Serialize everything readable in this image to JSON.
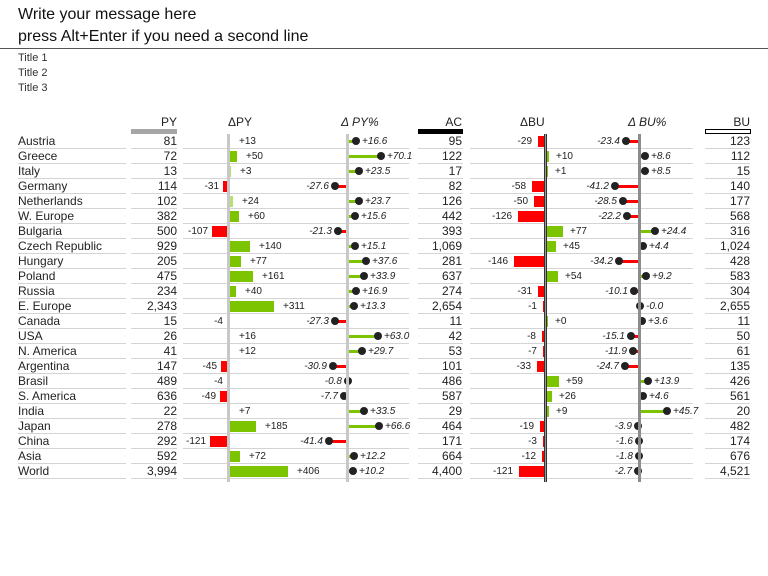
{
  "message": {
    "line1": "Write your message here",
    "line2": "press Alt+Enter if you need a second line"
  },
  "titles": [
    "Title 1",
    "Title 2",
    "Title 3"
  ],
  "colors": {
    "positive": "#7dc400",
    "negative": "#ff0000",
    "py_marker": "#a6a6a6",
    "ac_marker": "#000000",
    "axis_gray": "#bfbfbf",
    "axis_dark": "#555555",
    "dot": "#222222"
  },
  "headers": {
    "py": "PY",
    "delta_py": "ΔPY",
    "delta_py_pct": "Δ PY%",
    "ac": "AC",
    "delta_bu": "ΔBU",
    "delta_bu_pct": "Δ BU%",
    "bu": "BU"
  },
  "chart_data": {
    "type": "table",
    "title": "Write your message here",
    "subtitle": "press Alt+Enter if you need a second line",
    "columns": [
      "Name",
      "PY",
      "ΔPY",
      "ΔPY%",
      "AC",
      "ΔBU",
      "ΔBU%",
      "BU"
    ],
    "rows": [
      {
        "name": "Austria",
        "py": "81",
        "dpy": "+13",
        "dpy_v": 13,
        "dpyp": "+16.6",
        "dpyp_v": 16.6,
        "ac": "95",
        "dbu": "-29",
        "dbu_v": -29,
        "dbup": "-23.4",
        "dbup_v": -23.4,
        "bu": "123",
        "dpy_bar": false,
        "dbu_bar": true
      },
      {
        "name": "Greece",
        "py": "72",
        "dpy": "+50",
        "dpy_v": 50,
        "dpyp": "+70.1",
        "dpyp_v": 70.1,
        "ac": "122",
        "dbu": "+10",
        "dbu_v": 10,
        "dbup": "+8.6",
        "dbup_v": 8.6,
        "bu": "112",
        "dpy_bar": true,
        "dbu_bar": true
      },
      {
        "name": "Italy",
        "py": "13",
        "dpy": "+3",
        "dpy_v": 3,
        "dpyp": "+23.5",
        "dpyp_v": 23.5,
        "ac": "17",
        "dbu": "+1",
        "dbu_v": 1,
        "dbup": "+8.5",
        "dbup_v": 8.5,
        "bu": "15",
        "dpy_bar": true,
        "dbu_bar": true
      },
      {
        "name": "Germany",
        "py": "114",
        "dpy": "-31",
        "dpy_v": -31,
        "dpyp": "-27.6",
        "dpyp_v": -27.6,
        "ac": "82",
        "dbu": "-58",
        "dbu_v": -58,
        "dbup": "-41.2",
        "dbup_v": -41.2,
        "bu": "140",
        "dpy_bar": true,
        "dbu_bar": true
      },
      {
        "name": "Netherlands",
        "py": "102",
        "dpy": "+24",
        "dpy_v": 24,
        "dpyp": "+23.7",
        "dpyp_v": 23.7,
        "ac": "126",
        "dbu": "-50",
        "dbu_v": -50,
        "dbup": "-28.5",
        "dbup_v": -28.5,
        "bu": "177",
        "dpy_bar": true,
        "dbu_bar": true
      },
      {
        "name": "W. Europe",
        "py": "382",
        "dpy": "+60",
        "dpy_v": 60,
        "dpyp": "+15.6",
        "dpyp_v": 15.6,
        "ac": "442",
        "dbu": "-126",
        "dbu_v": -126,
        "dbup": "-22.2",
        "dbup_v": -22.2,
        "bu": "568",
        "dpy_bar": true,
        "dbu_bar": true
      },
      {
        "name": "Bulgaria",
        "py": "500",
        "dpy": "-107",
        "dpy_v": -107,
        "dpyp": "-21.3",
        "dpyp_v": -21.3,
        "ac": "393",
        "dbu": "+77",
        "dbu_v": 77,
        "dbup": "+24.4",
        "dbup_v": 24.4,
        "bu": "316",
        "dpy_bar": true,
        "dbu_bar": true
      },
      {
        "name": "Czech Republic",
        "py": "929",
        "dpy": "+140",
        "dpy_v": 140,
        "dpyp": "+15.1",
        "dpyp_v": 15.1,
        "ac": "1,069",
        "dbu": "+45",
        "dbu_v": 45,
        "dbup": "+4.4",
        "dbup_v": 4.4,
        "bu": "1,024",
        "dpy_bar": true,
        "dbu_bar": true
      },
      {
        "name": "Hungary",
        "py": "205",
        "dpy": "+77",
        "dpy_v": 77,
        "dpyp": "+37.6",
        "dpyp_v": 37.6,
        "ac": "281",
        "dbu": "-146",
        "dbu_v": -146,
        "dbup": "-34.2",
        "dbup_v": -34.2,
        "bu": "428",
        "dpy_bar": true,
        "dbu_bar": true
      },
      {
        "name": "Poland",
        "py": "475",
        "dpy": "+161",
        "dpy_v": 161,
        "dpyp": "+33.9",
        "dpyp_v": 33.9,
        "ac": "637",
        "dbu": "+54",
        "dbu_v": 54,
        "dbup": "+9.2",
        "dbup_v": 9.2,
        "bu": "583",
        "dpy_bar": true,
        "dbu_bar": true
      },
      {
        "name": "Russia",
        "py": "234",
        "dpy": "+40",
        "dpy_v": 40,
        "dpyp": "+16.9",
        "dpyp_v": 16.9,
        "ac": "274",
        "dbu": "-31",
        "dbu_v": -31,
        "dbup": "-10.1",
        "dbup_v": -10.1,
        "bu": "304",
        "dpy_bar": true,
        "dbu_bar": true
      },
      {
        "name": "E. Europe",
        "py": "2,343",
        "dpy": "+311",
        "dpy_v": 311,
        "dpyp": "+13.3",
        "dpyp_v": 13.3,
        "ac": "2,654",
        "dbu": "-1",
        "dbu_v": -1,
        "dbup": "-0.0",
        "dbup_v": 0,
        "bu": "2,655",
        "dpy_bar": true,
        "dbu_bar": true
      },
      {
        "name": "Canada",
        "py": "15",
        "dpy": "-4",
        "dpy_v": -4,
        "dpyp": "-27.3",
        "dpyp_v": -27.3,
        "ac": "11",
        "dbu": "+0",
        "dbu_v": 0,
        "dbup": "+3.6",
        "dbup_v": 3.6,
        "bu": "11",
        "dpy_bar": false,
        "dbu_bar": true
      },
      {
        "name": "USA",
        "py": "26",
        "dpy": "+16",
        "dpy_v": 16,
        "dpyp": "+63.0",
        "dpyp_v": 63.0,
        "ac": "42",
        "dbu": "-8",
        "dbu_v": -8,
        "dbup": "-15.1",
        "dbup_v": -15.1,
        "bu": "50",
        "dpy_bar": false,
        "dbu_bar": true
      },
      {
        "name": "N. America",
        "py": "41",
        "dpy": "+12",
        "dpy_v": 12,
        "dpyp": "+29.7",
        "dpyp_v": 29.7,
        "ac": "53",
        "dbu": "-7",
        "dbu_v": -7,
        "dbup": "-11.9",
        "dbup_v": -11.9,
        "bu": "61",
        "dpy_bar": false,
        "dbu_bar": true
      },
      {
        "name": "Argentina",
        "py": "147",
        "dpy": "-45",
        "dpy_v": -45,
        "dpyp": "-30.9",
        "dpyp_v": -30.9,
        "ac": "101",
        "dbu": "-33",
        "dbu_v": -33,
        "dbup": "-24.7",
        "dbup_v": -24.7,
        "bu": "135",
        "dpy_bar": true,
        "dbu_bar": true
      },
      {
        "name": "Brasil",
        "py": "489",
        "dpy": "-4",
        "dpy_v": -4,
        "dpyp": "-0.8",
        "dpyp_v": -0.8,
        "ac": "486",
        "dbu": "+59",
        "dbu_v": 59,
        "dbup": "+13.9",
        "dbup_v": 13.9,
        "bu": "426",
        "dpy_bar": false,
        "dbu_bar": true
      },
      {
        "name": "S. America",
        "py": "636",
        "dpy": "-49",
        "dpy_v": -49,
        "dpyp": "-7.7",
        "dpyp_v": -7.7,
        "ac": "587",
        "dbu": "+26",
        "dbu_v": 26,
        "dbup": "+4.6",
        "dbup_v": 4.6,
        "bu": "561",
        "dpy_bar": true,
        "dbu_bar": true
      },
      {
        "name": "India",
        "py": "22",
        "dpy": "+7",
        "dpy_v": 7,
        "dpyp": "+33.5",
        "dpyp_v": 33.5,
        "ac": "29",
        "dbu": "+9",
        "dbu_v": 9,
        "dbup": "+45.7",
        "dbup_v": 45.7,
        "bu": "20",
        "dpy_bar": false,
        "dbu_bar": true
      },
      {
        "name": "Japan",
        "py": "278",
        "dpy": "+185",
        "dpy_v": 185,
        "dpyp": "+66.6",
        "dpyp_v": 66.6,
        "ac": "464",
        "dbu": "-19",
        "dbu_v": -19,
        "dbup": "-3.9",
        "dbup_v": -3.9,
        "bu": "482",
        "dpy_bar": true,
        "dbu_bar": true
      },
      {
        "name": "China",
        "py": "292",
        "dpy": "-121",
        "dpy_v": -121,
        "dpyp": "-41.4",
        "dpyp_v": -41.4,
        "ac": "171",
        "dbu": "-3",
        "dbu_v": -3,
        "dbup": "-1.6",
        "dbup_v": -1.6,
        "bu": "174",
        "dpy_bar": true,
        "dbu_bar": true
      },
      {
        "name": "Asia",
        "py": "592",
        "dpy": "+72",
        "dpy_v": 72,
        "dpyp": "+12.2",
        "dpyp_v": 12.2,
        "ac": "664",
        "dbu": "-12",
        "dbu_v": -12,
        "dbup": "-1.8",
        "dbup_v": -1.8,
        "bu": "676",
        "dpy_bar": true,
        "dbu_bar": true
      },
      {
        "name": "World",
        "py": "3,994",
        "dpy": "+406",
        "dpy_v": 406,
        "dpyp": "+10.2",
        "dpyp_v": 10.2,
        "ac": "4,400",
        "dbu": "-121",
        "dbu_v": -121,
        "dbup": "-2.7",
        "dbup_v": -2.7,
        "bu": "4,521",
        "dpy_bar": true,
        "dbu_bar": true
      }
    ]
  }
}
